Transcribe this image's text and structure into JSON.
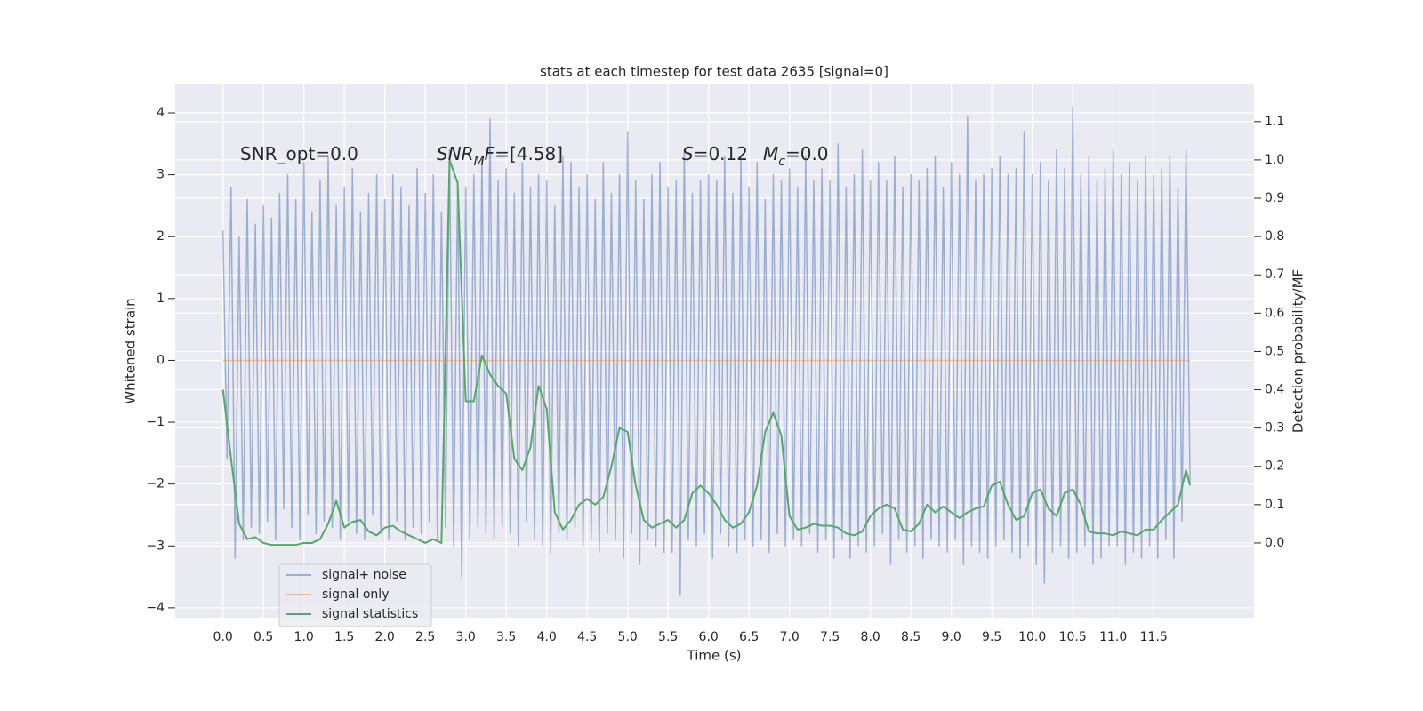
{
  "chart_data": {
    "type": "line",
    "title": "stats at each timestep for test data 2635 [signal=0]",
    "xlabel": "Time (s)",
    "ylabel": "Whitened strain",
    "y2label": "Detection probability/MF",
    "grid": true,
    "legend": "lower left",
    "xlim": [
      -0.59,
      12.74
    ],
    "ylim": [
      -4.16,
      4.46
    ],
    "y2lim": [
      -0.195,
      1.197
    ],
    "xticks": [
      {
        "value": 0,
        "label": "0.0"
      },
      0.5,
      {
        "value": 1,
        "label": "1.0"
      },
      1.5,
      {
        "value": 2,
        "label": "2.0"
      },
      2.5,
      {
        "value": 3,
        "label": "3.0"
      },
      3.5,
      {
        "value": 4,
        "label": "4.0"
      },
      4.5,
      {
        "value": 5,
        "label": "5.0"
      },
      5.5,
      {
        "value": 6,
        "label": "6.0"
      },
      6.5,
      {
        "value": 7,
        "label": "7.0"
      },
      7.5,
      {
        "value": 8,
        "label": "8.0"
      },
      8.5,
      {
        "value": 9,
        "label": "9.0"
      },
      9.5,
      {
        "value": 10,
        "label": "10.0"
      },
      10.5,
      {
        "value": 11,
        "label": "11.0"
      },
      11.5
    ],
    "yticks": [
      {
        "value": -4,
        "label": "−4"
      },
      {
        "value": -3,
        "label": "−3"
      },
      {
        "value": -2,
        "label": "−2"
      },
      {
        "value": -1,
        "label": "−1"
      },
      0,
      1,
      2,
      3,
      4
    ],
    "y2ticks": [
      {
        "value": 0,
        "label": "0.0"
      },
      0.1,
      0.2,
      0.3,
      0.4,
      0.5,
      0.6,
      0.7,
      0.8,
      0.9,
      {
        "value": 1,
        "label": "1.0"
      },
      1.1
    ],
    "annotations": [
      {
        "parts": [
          {
            "text": "SNR_opt=0.0"
          }
        ]
      },
      {
        "parts": [
          {
            "text": "SNR",
            "italic": true
          },
          {
            "text": "M",
            "italic": true,
            "sub": true
          },
          {
            "text": "F",
            "italic": true
          },
          {
            "text": "=[4.58]"
          }
        ]
      },
      {
        "parts": [
          {
            "text": "S",
            "italic": true
          },
          {
            "text": "=0.12"
          }
        ]
      },
      {
        "parts": [
          {
            "text": "M",
            "italic": true
          },
          {
            "text": "c",
            "italic": true,
            "sub": true
          },
          {
            "text": "=0.0"
          }
        ]
      }
    ],
    "series": [
      {
        "name": "signal+ noise",
        "color": "#4c72b0",
        "opacity": 0.5,
        "axis": "y",
        "x": [
          0,
          0.05,
          0.1,
          0.15,
          0.2,
          0.25,
          0.3,
          0.35,
          0.4,
          0.45,
          0.5,
          0.55,
          0.6,
          0.65,
          0.7,
          0.75,
          0.8,
          0.85,
          0.9,
          0.95,
          1,
          1.05,
          1.1,
          1.15,
          1.2,
          1.25,
          1.3,
          1.35,
          1.4,
          1.45,
          1.5,
          1.55,
          1.6,
          1.65,
          1.7,
          1.75,
          1.8,
          1.85,
          1.9,
          1.95,
          2,
          2.05,
          2.1,
          2.15,
          2.2,
          2.25,
          2.3,
          2.35,
          2.4,
          2.45,
          2.5,
          2.55,
          2.6,
          2.65,
          2.7,
          2.75,
          2.8,
          2.85,
          2.9,
          2.95,
          3,
          3.05,
          3.1,
          3.15,
          3.2,
          3.25,
          3.3,
          3.35,
          3.4,
          3.45,
          3.5,
          3.55,
          3.6,
          3.65,
          3.7,
          3.75,
          3.8,
          3.85,
          3.9,
          3.95,
          4,
          4.05,
          4.1,
          4.15,
          4.2,
          4.25,
          4.3,
          4.35,
          4.4,
          4.45,
          4.5,
          4.55,
          4.6,
          4.65,
          4.7,
          4.75,
          4.8,
          4.85,
          4.9,
          4.95,
          5,
          5.05,
          5.1,
          5.15,
          5.2,
          5.25,
          5.3,
          5.35,
          5.4,
          5.45,
          5.5,
          5.55,
          5.6,
          5.65,
          5.7,
          5.75,
          5.8,
          5.85,
          5.9,
          5.95,
          6,
          6.05,
          6.1,
          6.15,
          6.2,
          6.25,
          6.3,
          6.35,
          6.4,
          6.45,
          6.5,
          6.55,
          6.6,
          6.65,
          6.7,
          6.75,
          6.8,
          6.85,
          6.9,
          6.95,
          7,
          7.05,
          7.1,
          7.15,
          7.2,
          7.25,
          7.3,
          7.35,
          7.4,
          7.45,
          7.5,
          7.55,
          7.6,
          7.65,
          7.7,
          7.75,
          7.8,
          7.85,
          7.9,
          7.95,
          8,
          8.05,
          8.1,
          8.15,
          8.2,
          8.25,
          8.3,
          8.35,
          8.4,
          8.45,
          8.5,
          8.55,
          8.6,
          8.65,
          8.7,
          8.75,
          8.8,
          8.85,
          8.9,
          8.95,
          9,
          9.05,
          9.1,
          9.15,
          9.2,
          9.25,
          9.3,
          9.35,
          9.4,
          9.45,
          9.5,
          9.55,
          9.6,
          9.65,
          9.7,
          9.75,
          9.8,
          9.85,
          9.9,
          9.95,
          10,
          10.05,
          10.1,
          10.15,
          10.2,
          10.25,
          10.3,
          10.35,
          10.4,
          10.45,
          10.5,
          10.55,
          10.6,
          10.65,
          10.7,
          10.75,
          10.8,
          10.85,
          10.9,
          10.95,
          11,
          11.05,
          11.1,
          11.15,
          11.2,
          11.25,
          11.3,
          11.35,
          11.4,
          11.45,
          11.5,
          11.55,
          11.6,
          11.65,
          11.7,
          11.75,
          11.8,
          11.85,
          11.9,
          11.95
        ],
        "values": [
          2.1,
          -1.6,
          2.8,
          -3.2,
          2.0,
          -2.9,
          2.6,
          -2.7,
          2.2,
          -2.8,
          2.5,
          -2.6,
          2.3,
          -2.9,
          2.7,
          -2.4,
          3.0,
          -2.7,
          2.6,
          -2.9,
          3.2,
          -2.5,
          2.4,
          -2.8,
          2.9,
          -2.6,
          3.3,
          -2.7,
          2.5,
          -2.9,
          2.8,
          -2.6,
          3.1,
          -2.8,
          2.4,
          -2.9,
          2.7,
          -2.5,
          3.0,
          -2.8,
          2.6,
          -2.9,
          3.0,
          -2.6,
          2.8,
          -2.9,
          2.5,
          -2.7,
          3.1,
          -2.8,
          2.7,
          -2.6,
          3.0,
          -2.9,
          2.4,
          -2.7,
          3.4,
          -3.0,
          2.9,
          -3.5,
          2.8,
          -2.9,
          3.0,
          -2.7,
          3.3,
          -2.8,
          3.9,
          -2.9,
          2.9,
          -2.7,
          3.1,
          -2.8,
          2.7,
          -3.0,
          3.2,
          -2.6,
          2.8,
          -2.9,
          3.0,
          -3.0,
          2.9,
          -3.1,
          2.5,
          -2.8,
          3.3,
          -2.9,
          3.2,
          -2.7,
          2.8,
          -3.0,
          3.0,
          -2.9,
          2.6,
          -3.1,
          3.2,
          -2.8,
          2.7,
          -2.9,
          3.0,
          -3.2,
          3.7,
          -2.8,
          2.9,
          -3.3,
          2.6,
          -2.9,
          3.0,
          -3.0,
          3.2,
          -3.1,
          2.8,
          -3.1,
          2.9,
          -3.8,
          3.4,
          -2.9,
          2.7,
          -3.0,
          2.9,
          -2.8,
          3.0,
          -3.2,
          2.9,
          -2.8,
          3.3,
          -3.0,
          2.7,
          -3.1,
          3.3,
          -2.9,
          2.8,
          -3.0,
          3.2,
          -2.9,
          2.6,
          -3.1,
          3.0,
          -2.8,
          2.9,
          -3.0,
          3.1,
          -2.9,
          2.8,
          -3.0,
          3.3,
          -2.8,
          2.9,
          -3.1,
          3.1,
          -2.9,
          2.9,
          -3.2,
          3.5,
          -2.9,
          2.8,
          -3.2,
          3.0,
          -3.0,
          3.4,
          -3.1,
          2.9,
          -3.0,
          3.2,
          -2.8,
          2.9,
          -3.3,
          3.3,
          -2.9,
          2.8,
          -3.1,
          3.0,
          -3.0,
          2.9,
          -3.2,
          3.1,
          -2.9,
          3.3,
          -3.0,
          2.8,
          -3.1,
          3.2,
          -2.9,
          3.0,
          -3.3,
          3.95,
          -3.0,
          2.9,
          -3.1,
          3.0,
          -3.2,
          3.1,
          -3.0,
          3.3,
          -2.9,
          3.0,
          -3.1,
          3.1,
          -3.2,
          3.7,
          -3.0,
          3.0,
          -3.3,
          3.2,
          -3.6,
          2.9,
          -3.1,
          3.4,
          -3.0,
          3.1,
          -3.2,
          4.1,
          -3.1,
          3.0,
          -3.0,
          3.3,
          -3.3,
          2.9,
          -3.2,
          3.1,
          -3.0,
          3.4,
          -3.0,
          3.0,
          -3.3,
          3.2,
          -3.1,
          2.9,
          -3.2,
          3.3,
          -3.0,
          3.0,
          -3.2,
          3.1,
          -2.9,
          3.3,
          -3.2,
          2.8,
          -2.6,
          3.4,
          -2.0
        ]
      },
      {
        "name": "signal only",
        "color": "#dd8452",
        "opacity": 0.5,
        "axis": "y",
        "x": [
          0,
          11.95
        ],
        "values": [
          0,
          0
        ]
      },
      {
        "name": "signal statistics",
        "color": "#55a868",
        "opacity": 1,
        "axis": "y2",
        "x": [
          0,
          0.1,
          0.2,
          0.3,
          0.4,
          0.5,
          0.6,
          0.7,
          0.8,
          0.9,
          1,
          1.1,
          1.2,
          1.3,
          1.4,
          1.5,
          1.6,
          1.7,
          1.8,
          1.9,
          2,
          2.1,
          2.2,
          2.3,
          2.4,
          2.5,
          2.6,
          2.7,
          2.8,
          2.9,
          3,
          3.1,
          3.2,
          3.3,
          3.4,
          3.5,
          3.6,
          3.7,
          3.8,
          3.9,
          4,
          4.1,
          4.2,
          4.3,
          4.4,
          4.5,
          4.6,
          4.7,
          4.8,
          4.9,
          5,
          5.1,
          5.2,
          5.3,
          5.4,
          5.5,
          5.6,
          5.7,
          5.8,
          5.9,
          6,
          6.1,
          6.2,
          6.3,
          6.4,
          6.5,
          6.6,
          6.7,
          6.8,
          6.9,
          7,
          7.1,
          7.2,
          7.3,
          7.4,
          7.5,
          7.6,
          7.7,
          7.8,
          7.9,
          8,
          8.1,
          8.2,
          8.3,
          8.4,
          8.5,
          8.6,
          8.7,
          8.8,
          8.9,
          9,
          9.1,
          9.2,
          9.3,
          9.4,
          9.5,
          9.6,
          9.7,
          9.8,
          9.9,
          10,
          10.1,
          10.2,
          10.3,
          10.4,
          10.5,
          10.6,
          10.7,
          10.8,
          10.9,
          11,
          11.1,
          11.2,
          11.3,
          11.4,
          11.5,
          11.6,
          11.7,
          11.8,
          11.9,
          11.95
        ],
        "values": [
          0.4,
          0.22,
          0.05,
          0.01,
          0.015,
          0.0,
          -0.005,
          -0.005,
          -0.005,
          -0.005,
          0.0,
          0.0,
          0.01,
          0.05,
          0.11,
          0.04,
          0.055,
          0.06,
          0.03,
          0.02,
          0.04,
          0.045,
          0.03,
          0.02,
          0.01,
          0.0,
          0.01,
          0.0,
          1.0,
          0.94,
          0.37,
          0.37,
          0.49,
          0.44,
          0.41,
          0.39,
          0.22,
          0.19,
          0.25,
          0.41,
          0.35,
          0.08,
          0.035,
          0.06,
          0.1,
          0.115,
          0.1,
          0.12,
          0.2,
          0.3,
          0.29,
          0.15,
          0.06,
          0.04,
          0.05,
          0.06,
          0.04,
          0.06,
          0.13,
          0.15,
          0.13,
          0.1,
          0.06,
          0.04,
          0.05,
          0.08,
          0.15,
          0.29,
          0.34,
          0.28,
          0.07,
          0.035,
          0.04,
          0.05,
          0.045,
          0.045,
          0.04,
          0.025,
          0.02,
          0.03,
          0.07,
          0.09,
          0.1,
          0.09,
          0.035,
          0.03,
          0.05,
          0.1,
          0.08,
          0.095,
          0.08,
          0.065,
          0.08,
          0.09,
          0.095,
          0.15,
          0.16,
          0.1,
          0.06,
          0.07,
          0.13,
          0.14,
          0.09,
          0.07,
          0.13,
          0.14,
          0.1,
          0.03,
          0.025,
          0.025,
          0.02,
          0.03,
          0.025,
          0.02,
          0.035,
          0.035,
          0.06,
          0.08,
          0.1,
          0.19,
          0.15
        ]
      }
    ]
  }
}
